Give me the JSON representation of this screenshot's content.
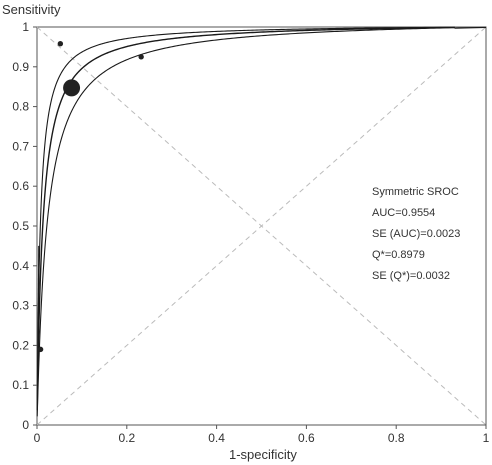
{
  "chart_data": {
    "type": "scatter",
    "title": "",
    "xlabel": "1-specificity",
    "ylabel": "Sensitivity",
    "xlim": [
      0,
      1
    ],
    "ylim": [
      0,
      1
    ],
    "x_ticks": [
      "0",
      "0.2",
      "0.4",
      "0.6",
      "0.8",
      "1"
    ],
    "y_ticks": [
      "0",
      "0.1",
      "0.2",
      "0.3",
      "0.4",
      "0.5",
      "0.6",
      "0.7",
      "0.8",
      "0.9",
      "1"
    ],
    "grid": "dashed diagonals",
    "sroc_curve": {
      "auc": 0.9554,
      "q_star": 0.8979
    },
    "points": [
      {
        "x": 0.052,
        "y": 0.958,
        "weight": "small"
      },
      {
        "x": 0.232,
        "y": 0.925,
        "weight": "small"
      },
      {
        "x": 0.077,
        "y": 0.847,
        "weight": "large"
      },
      {
        "x": 0.008,
        "y": 0.19,
        "weight": "small"
      }
    ],
    "annotations": [
      "Symmetric SROC",
      "AUC=0.9554",
      "SE (AUC)=0.0023",
      "Q*=0.8979",
      "SE (Q*)=0.0032"
    ],
    "colors": {
      "curve": "#1a1a1a",
      "points": "#222222",
      "grid": "#bbbbbb",
      "axis": "#555555"
    }
  }
}
